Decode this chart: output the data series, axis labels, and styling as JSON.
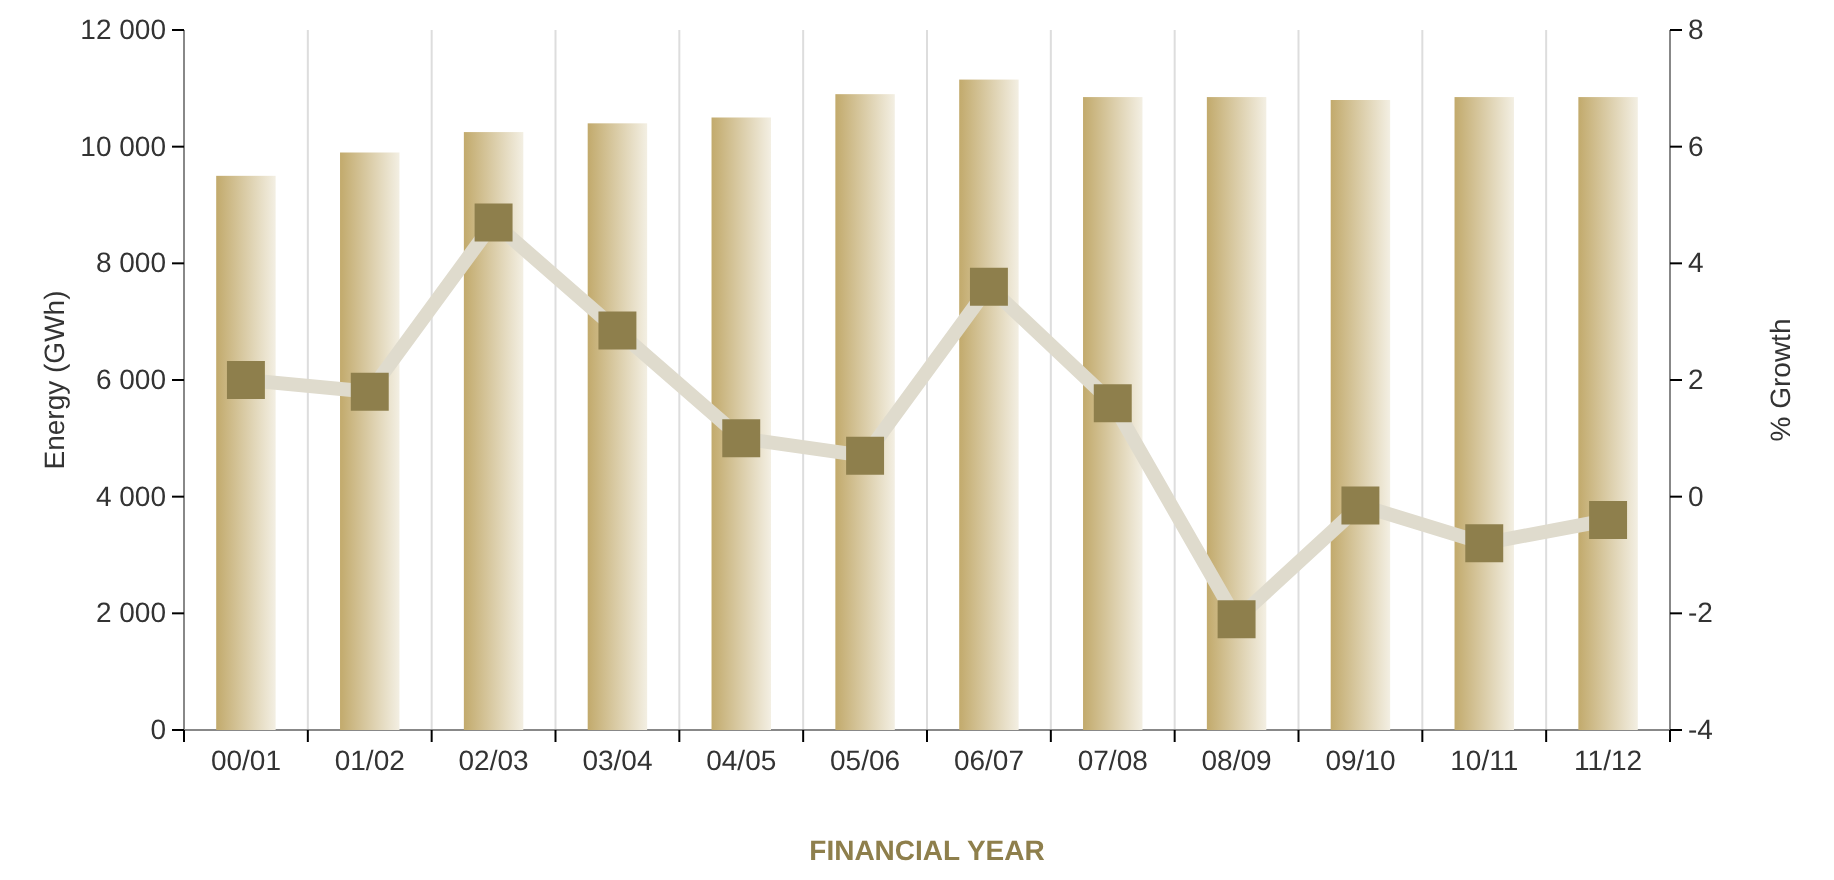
{
  "chart_data": {
    "type": "bar",
    "xlabel": "FINANCIAL YEAR",
    "ylabel": "Energy (GWh)",
    "y2label": "% Growth",
    "categories": [
      "00/01",
      "01/02",
      "02/03",
      "03/04",
      "04/05",
      "05/06",
      "06/07",
      "07/08",
      "08/09",
      "09/10",
      "10/11",
      "11/12"
    ],
    "series": [
      {
        "color": "#c2aa6c",
        "values": [
          9500,
          9900,
          10250,
          10400,
          10500,
          10900,
          11150,
          10850,
          10850,
          10800,
          10850,
          10850
        ]
      },
      {
        "type": "line",
        "axis": "y2",
        "color": "#8e7f4c",
        "marker": "square",
        "line_style": "solid",
        "values": [
          2.0,
          1.8,
          4.7,
          2.85,
          1.0,
          0.7,
          3.6,
          1.6,
          -2.1,
          -0.15,
          -0.8,
          -0.4
        ]
      }
    ],
    "ylim": [
      0,
      12000
    ],
    "yticks": [
      0,
      {
        "value": 2000,
        "label": "2 000"
      },
      {
        "value": 4000,
        "label": "4 000"
      },
      {
        "value": 6000,
        "label": "6 000"
      },
      {
        "value": 8000,
        "label": "8 000"
      },
      {
        "value": 10000,
        "label": "10 000"
      },
      {
        "value": 12000,
        "label": "12 000"
      }
    ],
    "y2lim": [
      -4,
      8
    ],
    "y2ticks": [
      -4,
      -2,
      0,
      2,
      4,
      6,
      8
    ],
    "grid": "x"
  }
}
